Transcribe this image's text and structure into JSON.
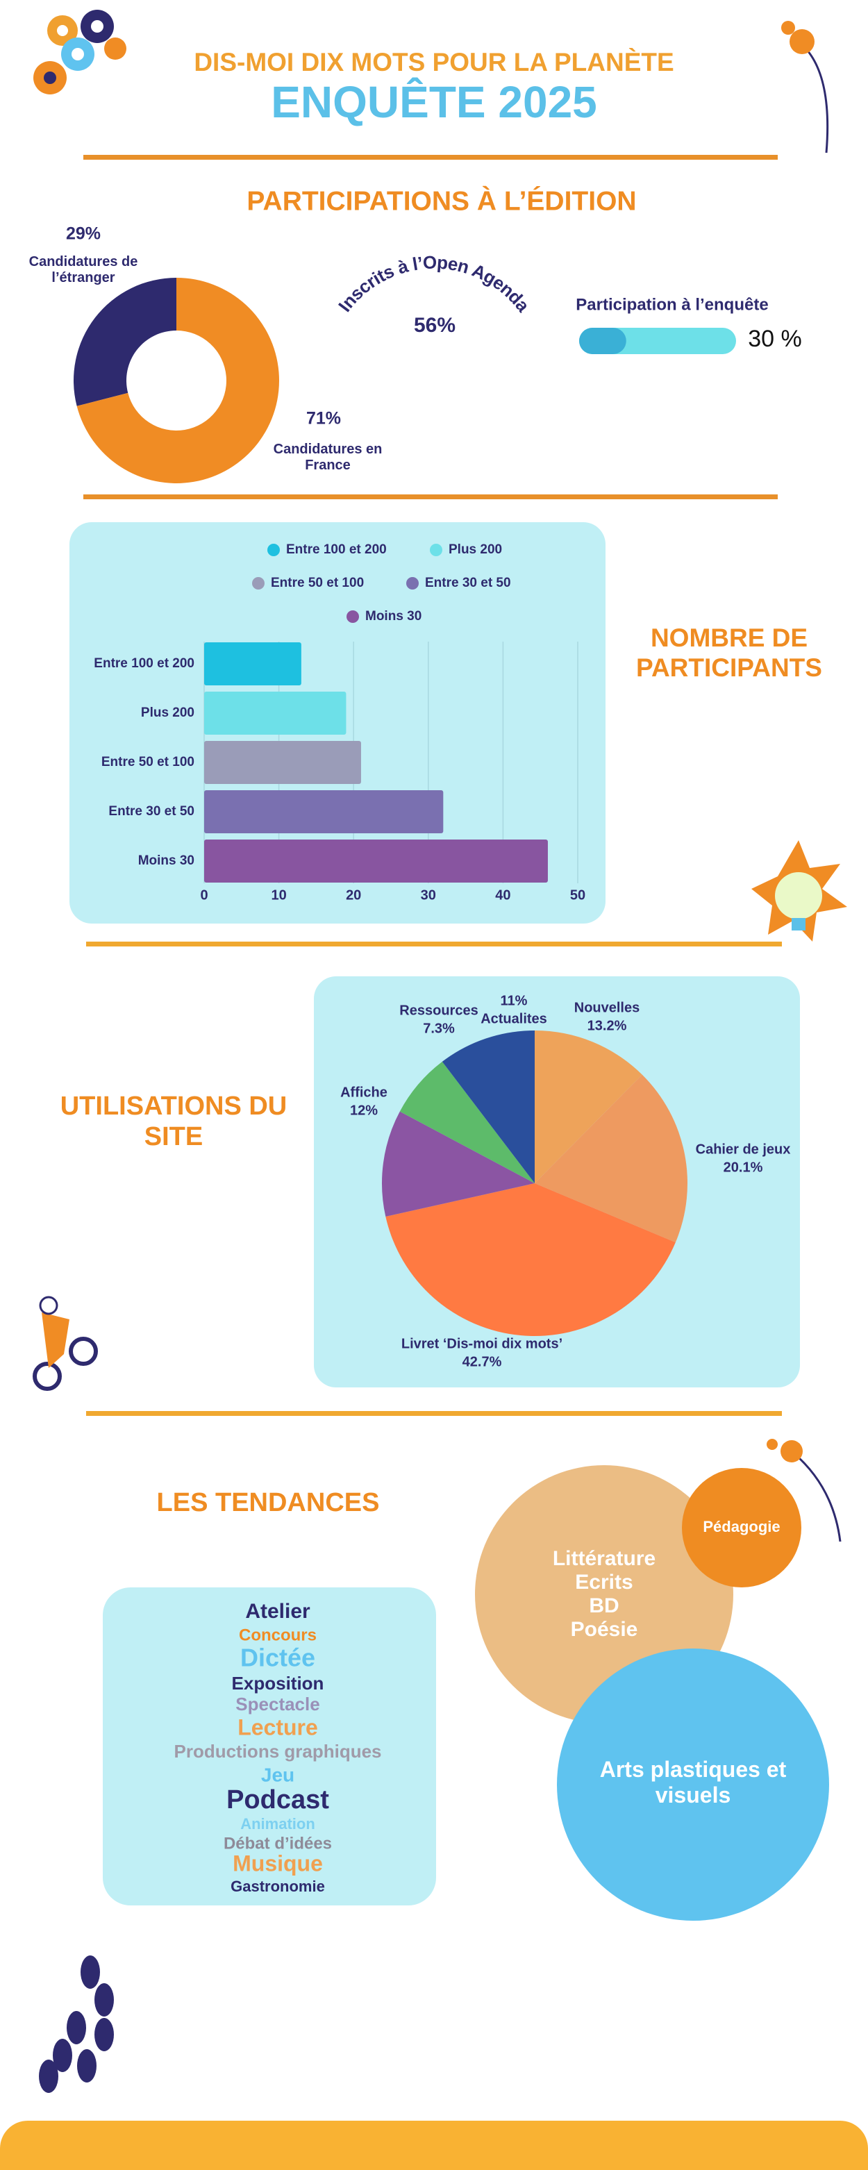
{
  "header": {
    "title": "DIS-MOI DIX MOTS POUR LA PLANÈTE",
    "subtitle": "ENQUÊTE 2025"
  },
  "sections": [
    "PARTICIPATIONS À L’ÉDITION",
    "NOMBRE DE PARTICIPANTS",
    "UTILISATIONS DU SITE",
    "LES TENDANCES"
  ],
  "chart_data": [
    {
      "type": "donut",
      "categories": [
        "Candidatures de l’étranger",
        "Candidatures en France"
      ],
      "values": [
        29,
        71
      ],
      "value_labels": [
        "29%",
        "71%"
      ],
      "colors": [
        "#2e2a6e",
        "#f08c24"
      ]
    },
    {
      "type": "arc-stat",
      "title": "Inscrits à l’Open Agenda",
      "values": [
        56
      ],
      "value_labels": [
        "56%"
      ]
    },
    {
      "type": "progress",
      "title": "Participation à l’enquête",
      "values": [
        30
      ],
      "value_labels": [
        "30 %"
      ],
      "xlim": [
        0,
        100
      ],
      "colors": [
        "#3ab0d6",
        "#6de0e8"
      ]
    },
    {
      "type": "barh",
      "categories": [
        "Entre 100 et 200",
        "Plus 200",
        "Entre 50 et 100",
        "Entre 30 et 50",
        "Moins 30"
      ],
      "values": [
        13,
        19,
        21,
        32,
        46
      ],
      "colors": [
        "#1ec0e0",
        "#6de0e8",
        "#9a9cb8",
        "#7a70b0",
        "#8855a0"
      ],
      "xlim": [
        0,
        50
      ],
      "xticks": [
        0,
        10,
        20,
        30,
        40,
        50
      ],
      "grid": true,
      "legend": "top"
    },
    {
      "type": "pie",
      "categories": [
        "Nouvelles",
        "Cahier de jeux",
        "Livret ‘Dis-moi dix mots’",
        "Affiche",
        "Ressources",
        "Actualites"
      ],
      "values": [
        13.2,
        20.1,
        42.7,
        12,
        7.3,
        11
      ],
      "value_labels": [
        "13.2%",
        "20.1%",
        "42.7%",
        "12%",
        "7.3%",
        "11%"
      ],
      "colors": [
        "#eea35a",
        "#ee9a60",
        "#ff7a42",
        "#8b55a3",
        "#5dbb6a",
        "#2a4f9c"
      ]
    }
  ],
  "tendances": {
    "words": [
      "Atelier",
      "Concours",
      "Dictée",
      "Exposition",
      "Spectacle",
      "Lecture",
      "Productions graphiques",
      "Jeu",
      "Podcast",
      "Animation",
      "Débat d’idées",
      "Musique",
      "Gastronomie"
    ],
    "bubbles": [
      [
        "Littérature",
        "Ecrits",
        "BD",
        "Poésie"
      ],
      [
        "Pédagogie"
      ],
      [
        "Arts plastiques et visuels"
      ]
    ]
  }
}
